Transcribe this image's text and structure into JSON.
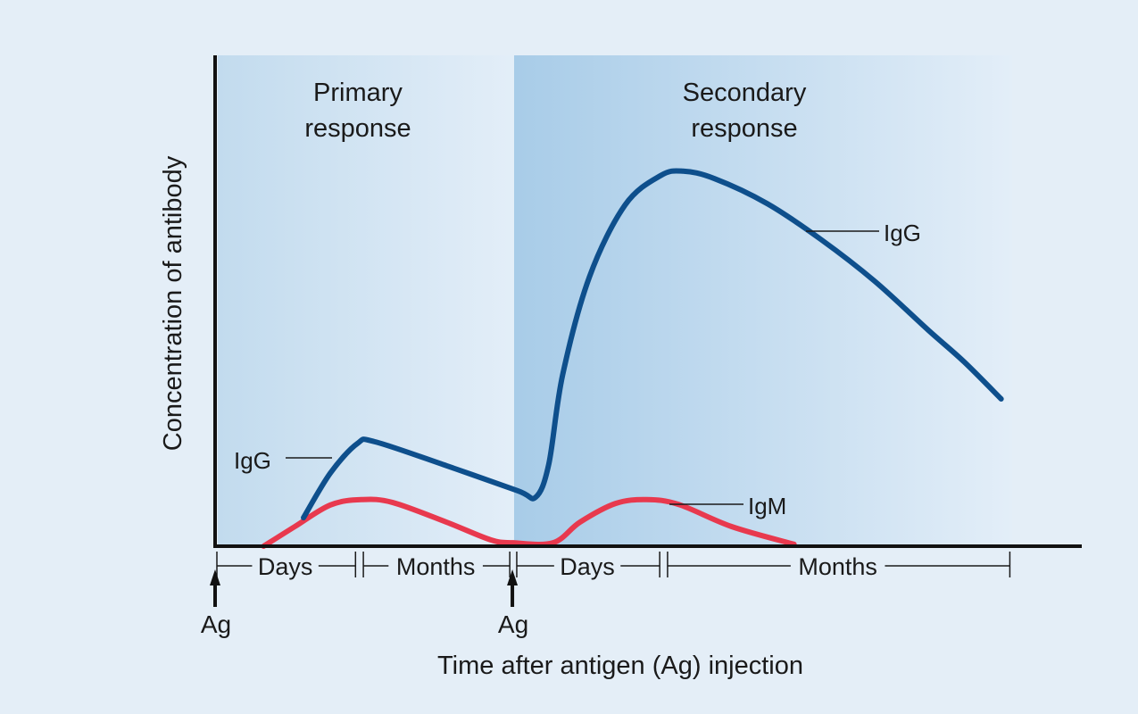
{
  "chart_data": {
    "type": "line",
    "title": "",
    "xlabel": "Time after antigen (Ag) injection",
    "ylabel": "Concentration of antibody",
    "xlim": [
      0,
      100
    ],
    "ylim": [
      0,
      100
    ],
    "regions": [
      {
        "label_line1": "Primary",
        "label_line2": "response",
        "x_start": 0,
        "x_end": 34.5
      },
      {
        "label_line1": "Secondary",
        "label_line2": "response",
        "x_start": 34.5,
        "x_end": 92
      }
    ],
    "series": [
      {
        "name": "IgG",
        "color": "#0e4f8c",
        "points": [
          [
            10.2,
            5.8
          ],
          [
            13.3,
            14.9
          ],
          [
            16.4,
            20.9
          ],
          [
            18.4,
            21.3
          ],
          [
            26.7,
            16.4
          ],
          [
            34.9,
            11.3
          ],
          [
            37.0,
            10.0
          ],
          [
            38.5,
            16.7
          ],
          [
            40.1,
            34.9
          ],
          [
            43.2,
            54.9
          ],
          [
            47.3,
            69.5
          ],
          [
            51.4,
            75.5
          ],
          [
            54.0,
            76.4
          ],
          [
            57.6,
            74.9
          ],
          [
            63.7,
            69.8
          ],
          [
            69.9,
            62.5
          ],
          [
            76.1,
            54.0
          ],
          [
            82.3,
            44.0
          ],
          [
            86.4,
            37.6
          ],
          [
            90.7,
            30.0
          ]
        ]
      },
      {
        "name": "IgM",
        "color": "#e8394e",
        "points": [
          [
            5.6,
            0
          ],
          [
            9.2,
            4.0
          ],
          [
            13.3,
            8.4
          ],
          [
            16.9,
            9.5
          ],
          [
            20.5,
            8.9
          ],
          [
            26.7,
            4.9
          ],
          [
            31.8,
            1.3
          ],
          [
            34.4,
            0.7
          ],
          [
            39.0,
            0.7
          ],
          [
            42.1,
            4.9
          ],
          [
            46.2,
            8.7
          ],
          [
            49.8,
            9.5
          ],
          [
            53.5,
            8.5
          ],
          [
            59.6,
            4.0
          ],
          [
            66.8,
            0.4
          ]
        ]
      }
    ],
    "annotations": {
      "igg_primary": "IgG",
      "igg_secondary": "IgG",
      "igm": "IgM"
    },
    "timeline": [
      {
        "label": "Days",
        "x_start": 0,
        "x_end": 16.2
      },
      {
        "label": "Months",
        "x_start": 16.9,
        "x_end": 34.0
      },
      {
        "label": "Days",
        "x_start": 34.6,
        "x_end": 51.3
      },
      {
        "label": "Months",
        "x_start": 52.0,
        "x_end": 91.7
      }
    ],
    "injections": [
      {
        "label": "Ag",
        "x": 0
      },
      {
        "label": "Ag",
        "x": 34.3
      }
    ]
  }
}
